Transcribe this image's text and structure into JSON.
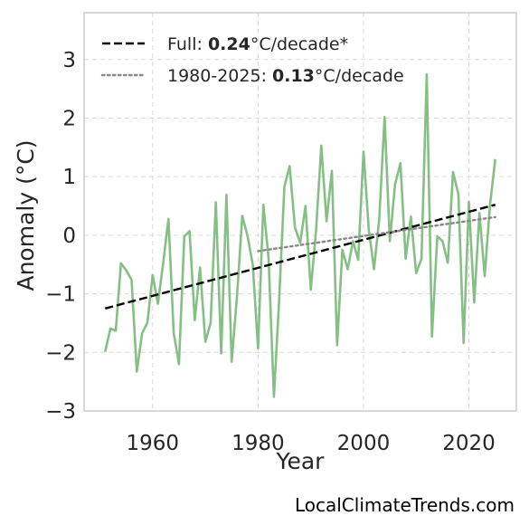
{
  "chart_data": {
    "type": "line",
    "xlabel": "Year",
    "ylabel": "Anomaly (°C)",
    "xlim": [
      1947,
      2029
    ],
    "ylim": [
      -3,
      3.8
    ],
    "xticks": [
      {
        "value": 1960,
        "label": "1960"
      },
      {
        "value": 1980,
        "label": "1980"
      },
      {
        "value": 2000,
        "label": "2000"
      },
      {
        "value": 2020,
        "label": "2020"
      }
    ],
    "yticks": [
      {
        "value": 3,
        "label": "3"
      },
      {
        "value": 2,
        "label": "2"
      },
      {
        "value": 1,
        "label": "1"
      },
      {
        "value": 0,
        "label": "0"
      },
      {
        "value": -1,
        "label": "−1"
      },
      {
        "value": -2,
        "label": "−2"
      },
      {
        "value": -3,
        "label": "−3"
      }
    ],
    "grid": true,
    "legend_position": "top-left",
    "series": [
      {
        "kind": "data",
        "color": "#86bf86",
        "x": [
          1951,
          1952,
          1953,
          1954,
          1955,
          1956,
          1957,
          1958,
          1959,
          1960,
          1961,
          1962,
          1963,
          1964,
          1965,
          1966,
          1967,
          1968,
          1969,
          1970,
          1971,
          1972,
          1973,
          1974,
          1975,
          1976,
          1977,
          1978,
          1979,
          1980,
          1981,
          1982,
          1983,
          1984,
          1985,
          1986,
          1987,
          1988,
          1989,
          1990,
          1991,
          1992,
          1993,
          1994,
          1995,
          1996,
          1997,
          1998,
          1999,
          2000,
          2001,
          2002,
          2003,
          2004,
          2005,
          2006,
          2007,
          2008,
          2009,
          2010,
          2011,
          2012,
          2013,
          2014,
          2015,
          2016,
          2017,
          2018,
          2019,
          2020,
          2021,
          2022,
          2023,
          2024,
          2025
        ],
        "y": [
          -1.99,
          -1.59,
          -1.63,
          -0.48,
          -0.6,
          -0.76,
          -2.33,
          -1.68,
          -1.49,
          -0.68,
          -1.17,
          -0.48,
          0.28,
          -1.67,
          -2.2,
          -0.02,
          0.07,
          -1.45,
          -0.55,
          -1.82,
          -1.5,
          0.56,
          -2.02,
          0.69,
          -2.16,
          -1.06,
          0.33,
          -0.01,
          -0.5,
          -1.93,
          0.52,
          -0.39,
          -2.76,
          -1.1,
          0.83,
          1.18,
          0.13,
          -0.13,
          0.5,
          -0.93,
          0.08,
          1.53,
          0.24,
          1.1,
          -1.88,
          -0.25,
          -0.58,
          -0.1,
          -0.42,
          1.43,
          0.1,
          -0.58,
          0.28,
          2.02,
          -0.1,
          0.87,
          1.23,
          -0.4,
          0.32,
          -0.65,
          -0.4,
          2.75,
          -1.73,
          -0.02,
          -0.1,
          -0.47,
          1.08,
          0.7,
          -1.84,
          0.57,
          -1.15,
          0.38,
          -0.7,
          0.52,
          1.3
        ]
      },
      {
        "kind": "trend",
        "name_prefix": "Full: ",
        "name_value": "0.24",
        "name_suffix": "°C/decade*",
        "color": "#000000",
        "dash": "dashed",
        "x": [
          1951,
          2025
        ],
        "y": [
          -1.25,
          0.52
        ]
      },
      {
        "kind": "trend",
        "name_prefix": "1980-2025: ",
        "name_value": "0.13",
        "name_suffix": "°C/decade",
        "color": "#888888",
        "dash": "dotted",
        "x": [
          1980,
          2025
        ],
        "y": [
          -0.27,
          0.31
        ]
      }
    ]
  },
  "credit": "LocalClimateTrends.com"
}
